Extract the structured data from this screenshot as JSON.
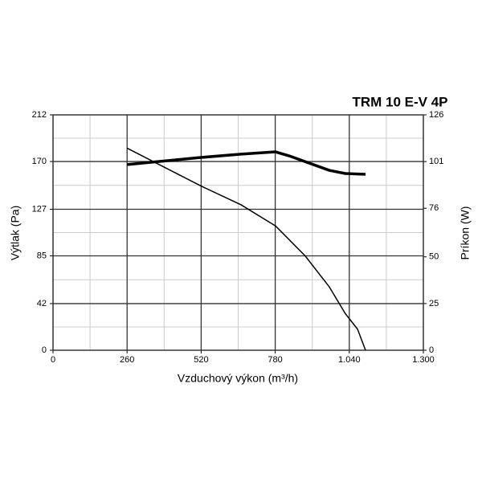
{
  "chart_data": {
    "type": "line",
    "title": "TRM 10 E-V 4P",
    "x_label": "Vzduchový výkon (m³/h)",
    "y_label": "Výtlak (Pa)",
    "y2_label": "Príkon (W)",
    "xlim": [
      0,
      1300
    ],
    "xticks": [
      0,
      260,
      520,
      780,
      {
        "value": 1040,
        "label": "1.040"
      },
      {
        "value": 1300,
        "label": "1.300"
      }
    ],
    "ylim": [
      0,
      212
    ],
    "yticks": [
      0,
      42,
      85,
      127,
      170,
      212
    ],
    "y2lim": [
      0,
      126
    ],
    "y2ticks": [
      0,
      25,
      50,
      76,
      101,
      126
    ],
    "grid": true,
    "series": [
      {
        "color": "#000000",
        "x": [
          260,
          519,
          660,
          781,
          885,
          970,
          1026,
          1069,
          1097
        ],
        "values": [
          182,
          148,
          131,
          112,
          85,
          57,
          33,
          19,
          0
        ]
      },
      {
        "color": "#000000",
        "axis": "y2",
        "x": [
          260,
          519,
          660,
          781,
          830,
          970,
          1026,
          1097
        ],
        "values": [
          99.4,
          103.2,
          105,
          106.2,
          104,
          96.3,
          94.6,
          94.2
        ]
      }
    ]
  }
}
